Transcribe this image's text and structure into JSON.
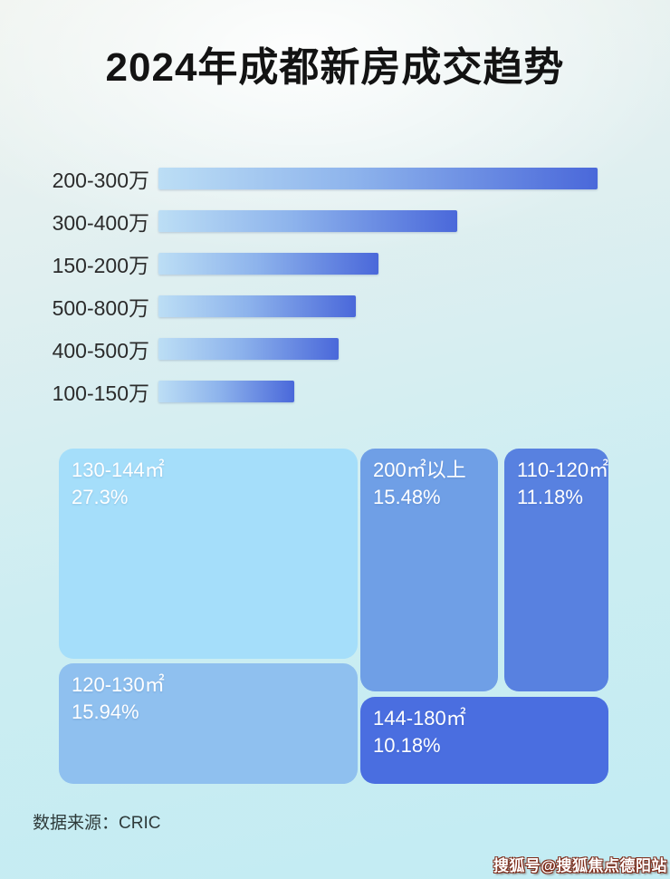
{
  "page": {
    "title": "2024年成都新房成交趋势",
    "source_label": "数据来源：CRIC",
    "watermark": "搜狐号@搜狐焦点德阳站"
  },
  "colors": {
    "background_top": "#eff3ef",
    "background_bottom": "#c2ecf3",
    "title_text": "#131313",
    "bar_gradient_start": "#bcdef5",
    "bar_gradient_end": "#4a68da",
    "treemap_text": "#ffffff"
  },
  "chart_data": [
    {
      "type": "bar",
      "title": "2024年成都新房成交趋势",
      "orientation": "horizontal",
      "categories": [
        "200-300万",
        "300-400万",
        "150-200万",
        "500-800万",
        "400-500万",
        "100-150万"
      ],
      "values": [
        100,
        68,
        50,
        45,
        41,
        31
      ],
      "values_note": "no numeric axis shown in image; values are relative bar lengths as % of longest bar",
      "xlabel": "",
      "ylabel": "",
      "legend": false,
      "grid": false
    },
    {
      "type": "heatmap",
      "subtype": "treemap",
      "title": "",
      "legend": false,
      "items": [
        {
          "label": "130-144㎡",
          "value": 27.3,
          "value_label": "27.3%",
          "color": "#a5defa"
        },
        {
          "label": "200㎡以上",
          "value": 15.48,
          "value_label": "15.48%",
          "color": "#6f9fe6"
        },
        {
          "label": "110-120㎡",
          "value": 11.18,
          "value_label": "11.18%",
          "color": "#5881e0"
        },
        {
          "label": "120-130㎡",
          "value": 15.94,
          "value_label": "15.94%",
          "color": "#8fc0ef"
        },
        {
          "label": "144-180㎡",
          "value": 10.18,
          "value_label": "10.18%",
          "color": "#4a6ee0"
        }
      ]
    }
  ]
}
